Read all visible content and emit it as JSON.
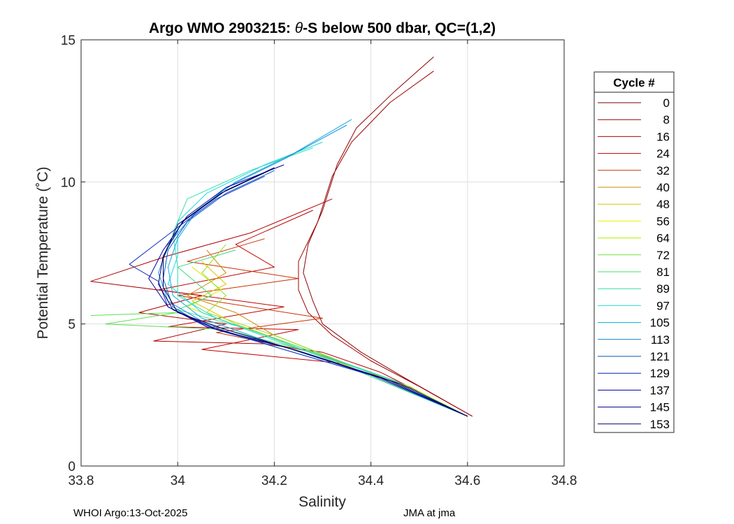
{
  "chart_data": {
    "type": "line",
    "title_prefix": "Argo WMO 2903215: ",
    "title_theta": "θ",
    "title_suffix": "-S below 500 dbar,  QC=(1,2)",
    "xlabel": "Salinity",
    "ylabel": "Potential Temperature (˚C)",
    "xlim": [
      33.8,
      34.8
    ],
    "ylim": [
      0,
      15
    ],
    "xticks": [
      33.8,
      34,
      34.2,
      34.4,
      34.6,
      34.8
    ],
    "xtick_labels": [
      "33.8",
      "34",
      "34.2",
      "34.4",
      "34.6",
      "34.8"
    ],
    "yticks": [
      0,
      5,
      10,
      15
    ],
    "ytick_labels": [
      "0",
      "5",
      "10",
      "15"
    ],
    "grid": true,
    "legend": {
      "title": "Cycle #",
      "placement": "right-outside",
      "entries": [
        {
          "label": "0",
          "color": "#800000"
        },
        {
          "label": "8",
          "color": "#990000"
        },
        {
          "label": "16",
          "color": "#b30000"
        },
        {
          "label": "24",
          "color": "#c00000"
        },
        {
          "label": "32",
          "color": "#c83200"
        },
        {
          "label": "40",
          "color": "#cc8800"
        },
        {
          "label": "48",
          "color": "#e0c000"
        },
        {
          "label": "56",
          "color": "#f0f000"
        },
        {
          "label": "64",
          "color": "#b0f000"
        },
        {
          "label": "72",
          "color": "#70e040"
        },
        {
          "label": "81",
          "color": "#40e070"
        },
        {
          "label": "89",
          "color": "#30e0a0"
        },
        {
          "label": "97",
          "color": "#20e0d0"
        },
        {
          "label": "105",
          "color": "#00b0e0"
        },
        {
          "label": "113",
          "color": "#0080d0"
        },
        {
          "label": "121",
          "color": "#0050c0"
        },
        {
          "label": "129",
          "color": "#0020b0"
        },
        {
          "label": "137",
          "color": "#0000a0"
        },
        {
          "label": "145",
          "color": "#000080"
        },
        {
          "label": "153",
          "color": "#000060"
        }
      ]
    },
    "series": [
      {
        "color": "#8b0000",
        "points": [
          [
            34.53,
            14.4
          ],
          [
            34.45,
            13.2
          ],
          [
            34.37,
            11.9
          ],
          [
            34.33,
            10.6
          ],
          [
            34.3,
            9.0
          ],
          [
            34.27,
            7.8
          ],
          [
            34.26,
            6.8
          ],
          [
            34.28,
            5.8
          ],
          [
            34.3,
            5.0
          ],
          [
            34.38,
            4.0
          ],
          [
            34.47,
            3.1
          ],
          [
            34.61,
            1.75
          ]
        ]
      },
      {
        "color": "#a00000",
        "points": [
          [
            34.53,
            13.9
          ],
          [
            34.44,
            12.8
          ],
          [
            34.36,
            11.4
          ],
          [
            34.32,
            10.2
          ],
          [
            34.29,
            8.6
          ],
          [
            34.25,
            7.2
          ],
          [
            34.25,
            6.2
          ],
          [
            34.27,
            5.4
          ],
          [
            34.32,
            4.6
          ],
          [
            34.4,
            3.7
          ],
          [
            34.5,
            2.8
          ],
          [
            34.61,
            1.75
          ]
        ]
      },
      {
        "color": "#b00000",
        "points": [
          [
            34.32,
            9.4
          ],
          [
            34.15,
            8.2
          ],
          [
            33.98,
            7.4
          ],
          [
            33.82,
            6.5
          ],
          [
            34.05,
            6.0
          ],
          [
            33.92,
            5.4
          ],
          [
            34.1,
            5.0
          ],
          [
            33.95,
            4.4
          ],
          [
            34.18,
            4.3
          ],
          [
            34.3,
            4.0
          ],
          [
            34.42,
            3.3
          ],
          [
            34.6,
            1.75
          ]
        ]
      },
      {
        "color": "#c00000",
        "points": [
          [
            34.28,
            9.0
          ],
          [
            34.12,
            7.8
          ],
          [
            34.2,
            7.0
          ],
          [
            33.96,
            6.2
          ],
          [
            34.22,
            5.6
          ],
          [
            33.98,
            4.9
          ],
          [
            34.25,
            4.8
          ],
          [
            34.05,
            4.1
          ],
          [
            34.35,
            3.6
          ],
          [
            34.5,
            2.6
          ],
          [
            34.6,
            1.75
          ]
        ]
      },
      {
        "color": "#c83200",
        "points": [
          [
            34.18,
            8.0
          ],
          [
            34.02,
            7.2
          ],
          [
            34.25,
            6.6
          ],
          [
            34.0,
            6.0
          ],
          [
            34.3,
            5.2
          ],
          [
            34.08,
            4.7
          ],
          [
            34.28,
            4.0
          ],
          [
            34.45,
            3.0
          ],
          [
            34.6,
            1.75
          ]
        ]
      },
      {
        "color": "#cc8800",
        "points": [
          [
            34.06,
            7.6
          ],
          [
            34.1,
            6.8
          ],
          [
            34.02,
            6.0
          ],
          [
            34.12,
            5.4
          ],
          [
            34.2,
            4.6
          ],
          [
            34.35,
            3.6
          ],
          [
            34.5,
            2.6
          ],
          [
            34.6,
            1.75
          ]
        ]
      },
      {
        "color": "#e0c000",
        "points": [
          [
            34.05,
            7.2
          ],
          [
            34.1,
            6.4
          ],
          [
            34.03,
            5.8
          ],
          [
            34.12,
            5.0
          ],
          [
            34.25,
            4.2
          ],
          [
            34.4,
            3.2
          ],
          [
            34.6,
            1.75
          ]
        ]
      },
      {
        "color": "#d8e800",
        "points": [
          [
            34.03,
            7.0
          ],
          [
            34.09,
            6.2
          ],
          [
            34.02,
            5.6
          ],
          [
            34.13,
            4.9
          ],
          [
            34.3,
            3.9
          ],
          [
            34.48,
            2.8
          ],
          [
            34.6,
            1.75
          ]
        ]
      },
      {
        "color": "#90e020",
        "points": [
          [
            34.1,
            7.8
          ],
          [
            34.05,
            6.8
          ],
          [
            34.1,
            6.0
          ],
          [
            34.06,
            5.4
          ],
          [
            34.2,
            4.6
          ],
          [
            34.38,
            3.4
          ],
          [
            34.6,
            1.75
          ]
        ]
      },
      {
        "color": "#5ce050",
        "points": [
          [
            33.82,
            5.3
          ],
          [
            34.0,
            5.4
          ],
          [
            33.85,
            5.0
          ],
          [
            34.1,
            4.8
          ],
          [
            34.3,
            3.9
          ],
          [
            34.45,
            3.0
          ],
          [
            34.6,
            1.75
          ]
        ]
      },
      {
        "color": "#40d880",
        "points": [
          [
            34.12,
            7.6
          ],
          [
            34.0,
            7.0
          ],
          [
            34.07,
            6.0
          ],
          [
            34.0,
            5.5
          ],
          [
            34.15,
            4.8
          ],
          [
            34.35,
            3.5
          ],
          [
            34.6,
            1.75
          ]
        ]
      },
      {
        "color": "#30e0b0",
        "points": [
          [
            34.28,
            11.2
          ],
          [
            34.15,
            10.4
          ],
          [
            34.02,
            9.4
          ],
          [
            33.99,
            8.2
          ],
          [
            34.0,
            7.0
          ],
          [
            34.0,
            6.0
          ],
          [
            34.08,
            5.2
          ],
          [
            34.25,
            4.2
          ],
          [
            34.45,
            3.0
          ],
          [
            34.6,
            1.75
          ]
        ]
      },
      {
        "color": "#20d8d8",
        "points": [
          [
            34.3,
            11.4
          ],
          [
            34.18,
            10.6
          ],
          [
            34.06,
            9.6
          ],
          [
            34.0,
            8.6
          ],
          [
            34.0,
            7.4
          ],
          [
            33.98,
            6.4
          ],
          [
            34.05,
            5.4
          ],
          [
            34.22,
            4.3
          ],
          [
            34.45,
            3.0
          ],
          [
            34.6,
            1.75
          ]
        ]
      },
      {
        "color": "#10a8e0",
        "points": [
          [
            34.36,
            12.2
          ],
          [
            34.24,
            11.0
          ],
          [
            34.12,
            10.0
          ],
          [
            34.04,
            9.0
          ],
          [
            34.0,
            8.0
          ],
          [
            33.98,
            7.0
          ],
          [
            33.99,
            6.0
          ],
          [
            34.05,
            5.2
          ],
          [
            34.2,
            4.3
          ],
          [
            34.42,
            3.1
          ],
          [
            34.6,
            1.75
          ]
        ]
      },
      {
        "color": "#2090e0",
        "points": [
          [
            34.35,
            12.0
          ],
          [
            34.22,
            10.8
          ],
          [
            34.1,
            9.8
          ],
          [
            34.03,
            8.8
          ],
          [
            33.98,
            7.8
          ],
          [
            33.96,
            6.8
          ],
          [
            33.98,
            5.8
          ],
          [
            34.06,
            5.0
          ],
          [
            34.22,
            4.2
          ],
          [
            34.42,
            3.1
          ],
          [
            34.6,
            1.75
          ]
        ]
      },
      {
        "color": "#0060c8",
        "points": [
          [
            34.2,
            10.4
          ],
          [
            34.1,
            9.6
          ],
          [
            34.02,
            8.6
          ],
          [
            33.98,
            7.6
          ],
          [
            33.97,
            6.6
          ],
          [
            33.99,
            5.6
          ],
          [
            34.06,
            4.9
          ],
          [
            34.2,
            4.2
          ],
          [
            34.4,
            3.2
          ],
          [
            34.6,
            1.75
          ]
        ]
      },
      {
        "color": "#1030c0",
        "points": [
          [
            34.18,
            10.2
          ],
          [
            34.08,
            9.4
          ],
          [
            34.0,
            8.4
          ],
          [
            33.9,
            7.1
          ],
          [
            33.96,
            6.5
          ],
          [
            33.98,
            5.6
          ],
          [
            34.07,
            4.9
          ],
          [
            34.22,
            4.1
          ],
          [
            34.42,
            3.1
          ],
          [
            34.6,
            1.75
          ]
        ]
      },
      {
        "color": "#0000a0",
        "points": [
          [
            34.22,
            10.6
          ],
          [
            34.1,
            9.8
          ],
          [
            34.02,
            8.8
          ],
          [
            33.97,
            7.6
          ],
          [
            33.94,
            6.6
          ],
          [
            33.98,
            5.6
          ],
          [
            34.06,
            4.9
          ],
          [
            34.22,
            4.2
          ],
          [
            34.42,
            3.1
          ],
          [
            34.6,
            1.75
          ]
        ]
      },
      {
        "color": "#000080",
        "points": [
          [
            34.2,
            10.5
          ],
          [
            34.1,
            9.7
          ],
          [
            34.01,
            8.6
          ],
          [
            33.97,
            7.4
          ],
          [
            33.96,
            6.4
          ],
          [
            33.99,
            5.5
          ],
          [
            34.08,
            4.8
          ],
          [
            34.24,
            4.1
          ],
          [
            34.44,
            3.0
          ],
          [
            34.6,
            1.75
          ]
        ]
      },
      {
        "color": "#000050",
        "points": [
          [
            34.19,
            10.4
          ],
          [
            34.09,
            9.6
          ],
          [
            34.0,
            8.5
          ],
          [
            33.97,
            7.3
          ],
          [
            33.97,
            6.3
          ],
          [
            34.0,
            5.4
          ],
          [
            34.1,
            4.8
          ],
          [
            34.26,
            4.0
          ],
          [
            34.46,
            2.9
          ],
          [
            34.6,
            1.75
          ]
        ]
      }
    ]
  },
  "footer": {
    "left": "WHOI Argo:13-Oct-2025",
    "right": "JMA at jma"
  }
}
